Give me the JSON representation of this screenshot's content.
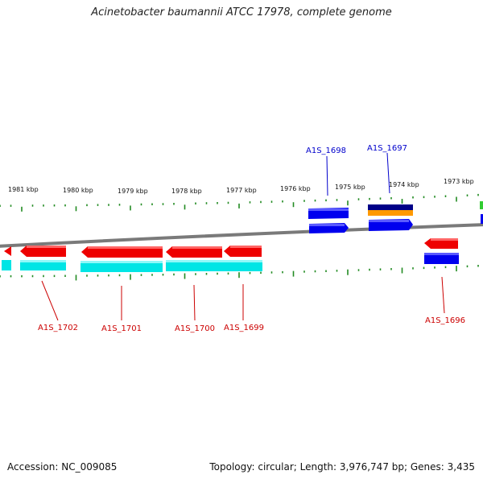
{
  "title": "Acinetobacter baumannii ATCC 17978, complete genome",
  "footer": {
    "accession": "Accession: NC_009085",
    "summary": "Topology: circular; Length: 3,976,747 bp; Genes: 3,435"
  },
  "colors": {
    "backbone": "#808080",
    "forward_gene": "#0000ee",
    "reverse_gene": "#ee0000",
    "cds_reverse": "#00e5e5",
    "cds_forward": "#0000ee",
    "orange_feature": "#ff9900",
    "dark_feature": "#000088",
    "green_feature": "#33cc33",
    "ticks": "#228b22",
    "blue_label": "#0000cc",
    "red_label": "#cc0000"
  },
  "scale": {
    "unit": "kbp",
    "ticks": [
      {
        "kbp": 1981,
        "label": "1981 kbp"
      },
      {
        "kbp": 1980,
        "label": "1980 kbp"
      },
      {
        "kbp": 1979,
        "label": "1979 kbp"
      },
      {
        "kbp": 1978,
        "label": "1978 kbp"
      },
      {
        "kbp": 1977,
        "label": "1977 kbp"
      },
      {
        "kbp": 1976,
        "label": "1976 kbp"
      },
      {
        "kbp": 1975,
        "label": "1975 kbp"
      },
      {
        "kbp": 1974,
        "label": "1974 kbp"
      },
      {
        "kbp": 1973,
        "label": "1973 kbp"
      }
    ]
  },
  "genes": [
    {
      "name": "A1S_1702",
      "strand": "reverse"
    },
    {
      "name": "A1S_1701",
      "strand": "reverse"
    },
    {
      "name": "A1S_1700",
      "strand": "reverse"
    },
    {
      "name": "A1S_1699",
      "strand": "reverse"
    },
    {
      "name": "A1S_1698",
      "strand": "forward"
    },
    {
      "name": "A1S_1697",
      "strand": "forward"
    },
    {
      "name": "A1S_1696",
      "strand": "reverse"
    }
  ]
}
